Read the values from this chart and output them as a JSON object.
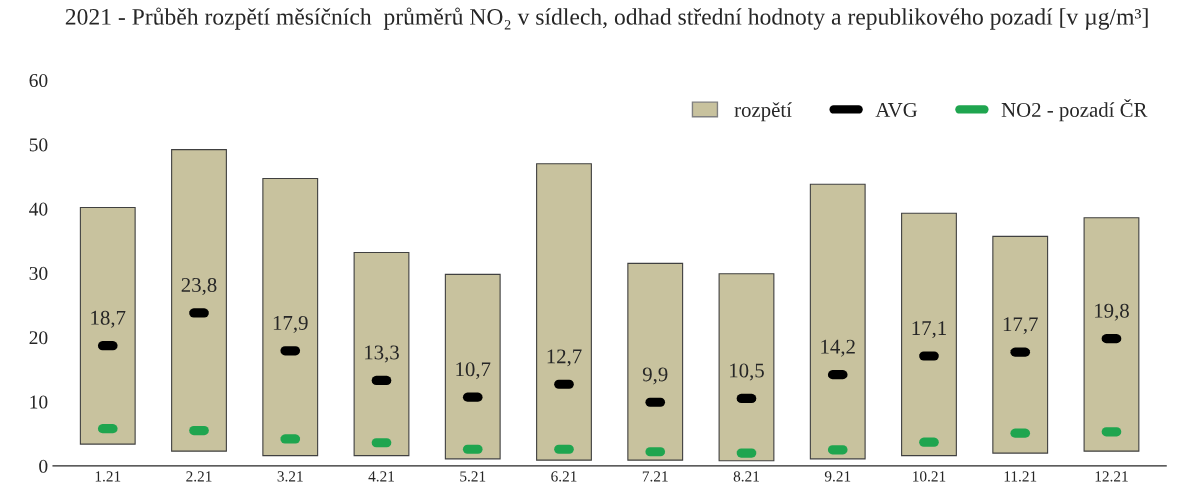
{
  "chart_data": {
    "type": "bar",
    "title": "2021 - Průběh rozpětí měsíčních  průměrů NO₂ v sídlech, odhad střední hodnoty a republikového pozadí [v µg/m³]",
    "categories": [
      "1.21",
      "2.21",
      "3.21",
      "4.21",
      "5.21",
      "6.21",
      "7.21",
      "8.21",
      "9.21",
      "10.21",
      "11.21",
      "12.21"
    ],
    "series": [
      {
        "name": "rozpětí",
        "color": "#c8c29e",
        "base": [
          3.4,
          2.3,
          1.6,
          1.6,
          1.1,
          0.9,
          0.9,
          0.8,
          1.1,
          1.6,
          2.0,
          2.3
        ],
        "values": [
          36.8,
          46.9,
          43.1,
          31.6,
          28.7,
          46.1,
          30.6,
          29.1,
          42.7,
          37.7,
          33.7,
          36.3
        ]
      },
      {
        "name": "AVG",
        "type": "scatter",
        "color": "#000000",
        "values": [
          18.7,
          23.8,
          17.9,
          13.3,
          10.7,
          12.7,
          9.9,
          10.5,
          14.2,
          17.1,
          17.7,
          19.8
        ],
        "value_labels": [
          "18,7",
          "23,8",
          "17,9",
          "13,3",
          "10,7",
          "12,7",
          "9,9",
          "10,5",
          "14,2",
          "17,1",
          "17,7",
          "19,8"
        ]
      },
      {
        "name": "NO2 - pozadí ČR",
        "type": "scatter",
        "color": "#1fa54f",
        "values": [
          5.8,
          5.5,
          4.2,
          3.6,
          2.6,
          2.6,
          2.2,
          2.0,
          2.5,
          3.7,
          5.1,
          5.3
        ]
      }
    ],
    "ylim": [
      0,
      60
    ],
    "yticks": [
      0,
      10,
      20,
      30,
      40,
      50,
      60
    ],
    "grid": false,
    "legend": "top right"
  }
}
